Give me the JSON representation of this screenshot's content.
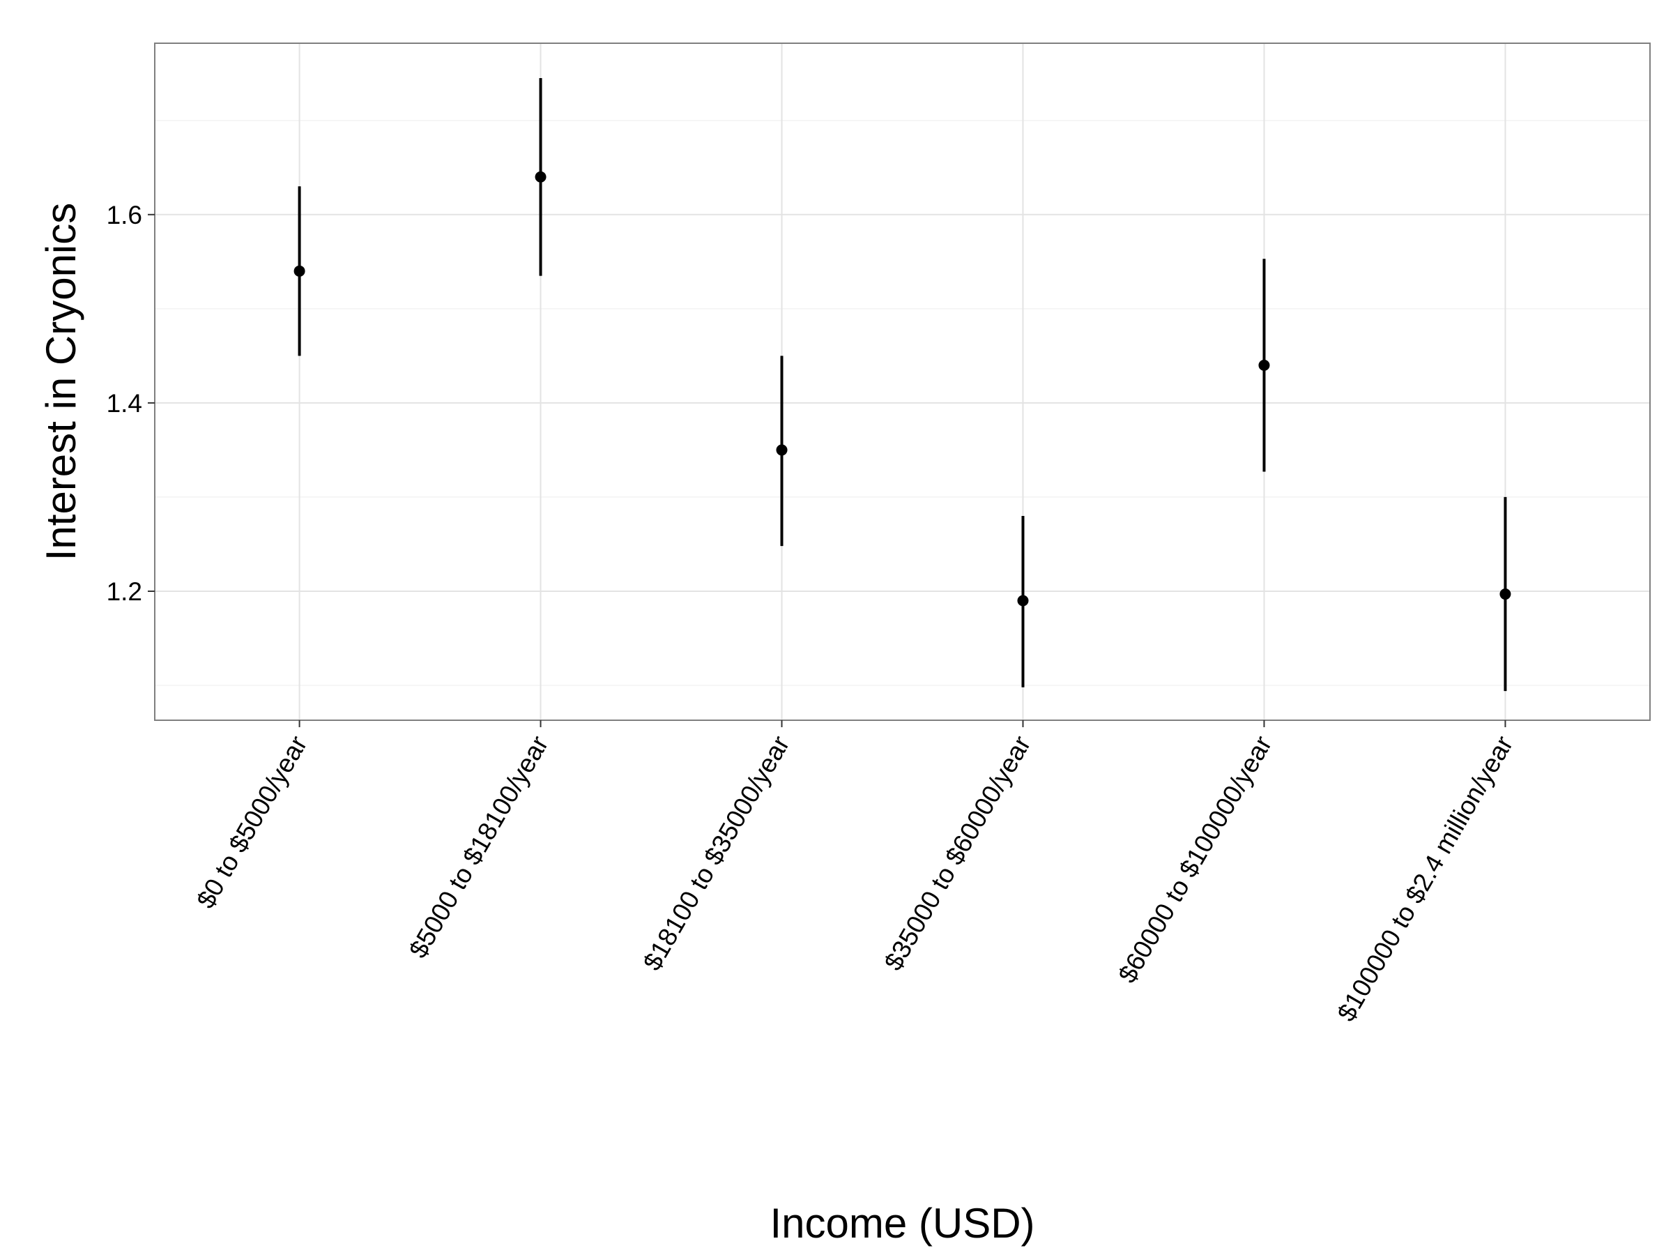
{
  "chart_data": {
    "type": "scatter",
    "title": "",
    "xlabel": "Income (USD)",
    "ylabel": "Interest in Cryonics",
    "categories": [
      "$0 to $5000/year",
      "$5000 to $18100/year",
      "$18100 to $35000/year",
      "$35000 to $60000/year",
      "$60000 to $100000/year",
      "$100000 to $2.4 million/year"
    ],
    "values": [
      1.54,
      1.64,
      1.35,
      1.19,
      1.44,
      1.197
    ],
    "lower": [
      1.45,
      1.535,
      1.248,
      1.098,
      1.327,
      1.094
    ],
    "upper": [
      1.63,
      1.745,
      1.45,
      1.28,
      1.553,
      1.3
    ],
    "yticks": [
      1.2,
      1.4,
      1.6
    ],
    "ytick_labels": [
      "1.2",
      "1.4",
      "1.6"
    ],
    "ylim": [
      1.063,
      1.782
    ],
    "grid": true,
    "error_bars": true,
    "colors": {
      "points": "#000000",
      "grid_major": "#e3e3e3",
      "grid_minor": "#f3f3f3",
      "panel_border": "#7f7f7f"
    }
  }
}
